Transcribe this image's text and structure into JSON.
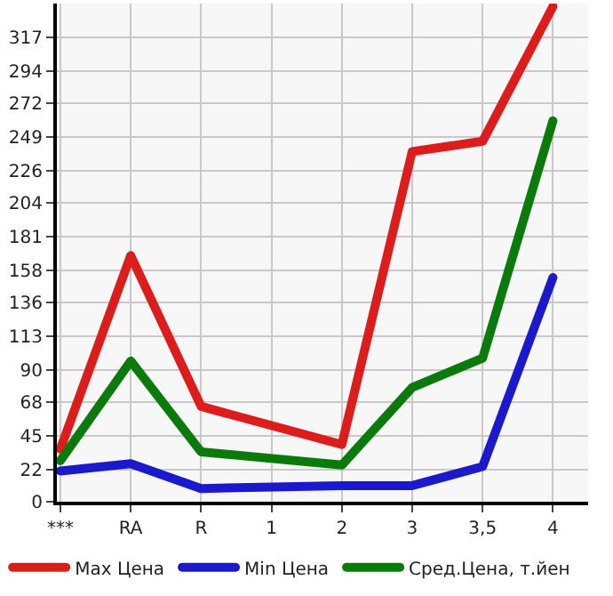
{
  "chart_data": {
    "type": "line",
    "categories": [
      "***",
      "RA",
      "R",
      "1",
      "2",
      "3",
      "3,5",
      "4"
    ],
    "series": [
      {
        "name": "Max Цена",
        "color": "#dd1c1c",
        "values": [
          36,
          168,
          65,
          null,
          39,
          239,
          246,
          338
        ]
      },
      {
        "name": "Min Цена",
        "color": "#1a1acc",
        "values": [
          21,
          26,
          9,
          null,
          11,
          11,
          24,
          153
        ]
      },
      {
        "name": "Сред.Цена, т.йен",
        "color": "#0a7a0a",
        "values": [
          28,
          96,
          34,
          null,
          25,
          78,
          98,
          260
        ]
      }
    ],
    "ylim": [
      0,
      340
    ],
    "yticks": [
      0,
      22,
      45,
      68,
      90,
      113,
      136,
      158,
      181,
      204,
      226,
      249,
      272,
      294,
      317
    ],
    "grid": true,
    "legend": "bottom",
    "marker": "none",
    "line_style": "solid"
  }
}
